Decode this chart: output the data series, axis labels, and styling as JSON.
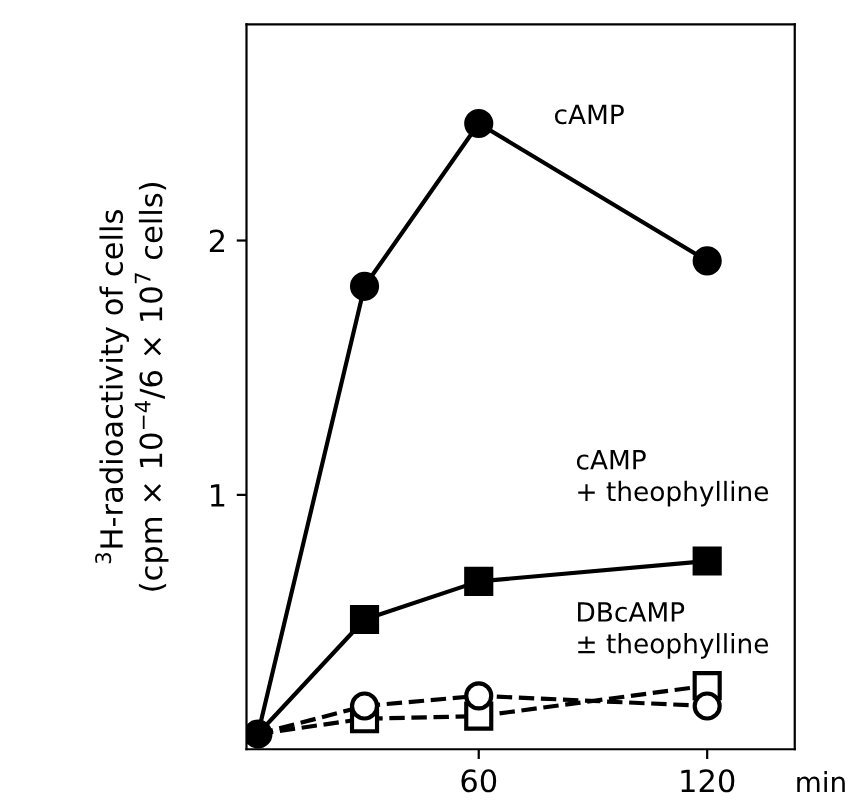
{
  "chart_data": {
    "type": "line",
    "ylabel": "$^{3}$H-radioactivity of cells\n(cpm × 10$^{−4}$/6 × 10$^{7}$ cells)",
    "xlabel": "min",
    "xlim": [
      -1,
      143
    ],
    "ylim": [
      0,
      2.85
    ],
    "xticks": [
      60,
      120
    ],
    "yticks": [
      1,
      2
    ],
    "grid": false,
    "legend": false,
    "series": [
      {
        "x": [
          2,
          30,
          60,
          120
        ],
        "values": [
          0.06,
          1.82,
          2.46,
          1.92
        ],
        "color": "#000000",
        "marker": "circle",
        "line_style": "solid"
      },
      {
        "x": [
          2,
          30,
          60,
          120
        ],
        "values": [
          0.06,
          0.51,
          0.66,
          0.74
        ],
        "color": "#000000",
        "marker": "square",
        "line_style": "solid"
      },
      {
        "x": [
          2,
          30,
          60,
          120
        ],
        "values": [
          0.06,
          0.17,
          0.21,
          0.17
        ],
        "color": "#000000",
        "marker": "circle",
        "line_style": "dashed"
      },
      {
        "x": [
          2,
          30,
          60,
          120
        ],
        "values": [
          0.06,
          0.12,
          0.13,
          0.25
        ],
        "color": "#000000",
        "marker": "square",
        "line_style": "dashed"
      }
    ],
    "annotations": [
      "cAMP",
      "cAMP\n+ theophylline",
      "DBcAMP\n± theophylline"
    ]
  }
}
